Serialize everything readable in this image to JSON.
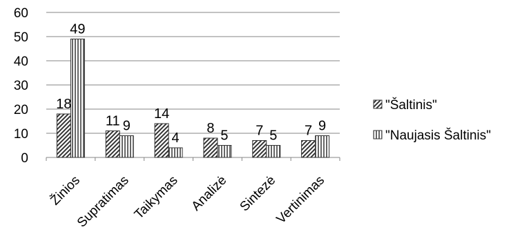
{
  "chart_data": {
    "type": "bar",
    "categories": [
      "Žinios",
      "Supratimas",
      "Taikymas",
      "Analizė",
      "Sintezė",
      "Vertinimas"
    ],
    "series": [
      {
        "name": "\"Šaltinis\"",
        "values": [
          18,
          11,
          14,
          8,
          7,
          7
        ],
        "pattern": "diagonal-hatch"
      },
      {
        "name": "\"Naujasis Šaltinis\"",
        "values": [
          49,
          9,
          4,
          5,
          5,
          9
        ],
        "pattern": "vertical-lines"
      }
    ],
    "yticks": [
      0,
      10,
      20,
      30,
      40,
      50,
      60
    ],
    "ylim": [
      0,
      60
    ],
    "grid": true,
    "legend_position": "right",
    "data_labels": true,
    "colors": {
      "bar_fill": "#ffffff",
      "pattern": "#333333",
      "grid": "#868686"
    }
  }
}
